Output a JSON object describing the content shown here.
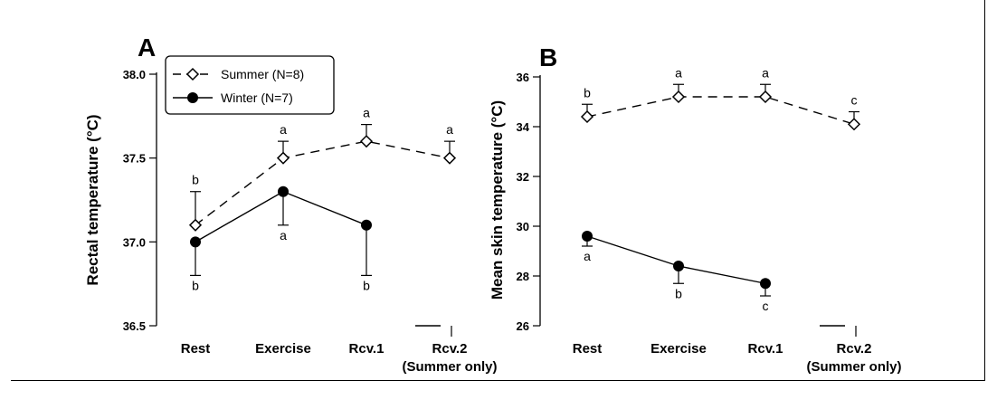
{
  "chart_data": [
    {
      "panel": "A",
      "type": "line",
      "ylabel": "Rectal temperature (°C)",
      "xlabel": "",
      "categories": [
        "Rest",
        "Exercise",
        "Rcv.1",
        "Rcv.2\n(Summer only)"
      ],
      "ylim": [
        36.5,
        38.0
      ],
      "yticks": [
        "36.5",
        "37.0",
        "37.5",
        "38.0"
      ],
      "legend": {
        "placement": "top-left"
      },
      "series": [
        {
          "name": "Summer (N=8)",
          "marker": "open-diamond",
          "line": "dashed",
          "values": [
            37.1,
            37.5,
            37.6,
            37.5
          ],
          "err": [
            0.2,
            0.1,
            0.1,
            0.1
          ],
          "err_dir": "up",
          "labels": [
            "b",
            "a",
            "a",
            "a"
          ]
        },
        {
          "name": "Winter (N=7)",
          "marker": "filled-circle",
          "line": "solid",
          "values": [
            37.0,
            37.3,
            37.1,
            null
          ],
          "err": [
            0.2,
            0.2,
            0.3,
            null
          ],
          "err_dir": "down",
          "labels": [
            "b",
            "a",
            "b",
            null
          ]
        }
      ]
    },
    {
      "panel": "B",
      "type": "line",
      "ylabel": "Mean skin temperature (°C)",
      "xlabel": "",
      "categories": [
        "Rest",
        "Exercise",
        "Rcv.1",
        "Rcv.2\n(Summer only)"
      ],
      "ylim": [
        26,
        36
      ],
      "yticks": [
        "26",
        "28",
        "30",
        "32",
        "34",
        "36"
      ],
      "series": [
        {
          "name": "Summer (N=8)",
          "marker": "open-diamond",
          "line": "dashed",
          "values": [
            34.4,
            35.2,
            35.2,
            34.1
          ],
          "err": [
            0.5,
            0.5,
            0.5,
            0.5
          ],
          "err_dir": "up",
          "labels": [
            "b",
            "a",
            "a",
            "c"
          ]
        },
        {
          "name": "Winter (N=7)",
          "marker": "filled-circle",
          "line": "solid",
          "values": [
            29.6,
            28.4,
            27.7,
            null
          ],
          "err": [
            0.4,
            0.7,
            0.5,
            null
          ],
          "err_dir": "down",
          "labels": [
            "a",
            "b",
            "c",
            null
          ]
        }
      ]
    }
  ]
}
